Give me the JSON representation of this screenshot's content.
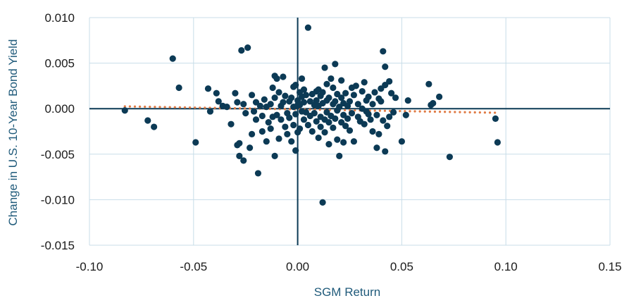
{
  "chart_data": {
    "type": "scatter",
    "xlabel": "SGM Return",
    "ylabel": "Change in U.S. 10-Year Bond Yield",
    "xlim": [
      -0.1,
      0.15
    ],
    "ylim": [
      -0.015,
      0.01
    ],
    "x_ticks": [
      -0.1,
      -0.05,
      0.0,
      0.05,
      0.1,
      0.15
    ],
    "x_tick_labels": [
      "-0.10",
      "-0.05",
      "0.00",
      "0.05",
      "0.10",
      "0.15"
    ],
    "y_ticks": [
      0.01,
      0.005,
      0.0,
      -0.005,
      -0.01,
      -0.015
    ],
    "y_tick_labels": [
      "0.010",
      "0.005",
      "0.000",
      "-0.005",
      "-0.010",
      "-0.015"
    ],
    "grid": true,
    "colors": {
      "points": "#0c3a55",
      "trendline": "#e07b45",
      "grid": "#c8dde8",
      "zero_axes": "#0c3a55",
      "axis_title": "#1f5a7a"
    },
    "series": [
      {
        "points": [
          [
            -0.083,
            -0.0002
          ],
          [
            -0.072,
            -0.0013
          ],
          [
            -0.069,
            -0.002
          ],
          [
            -0.06,
            0.0055
          ],
          [
            -0.057,
            0.0023
          ],
          [
            -0.049,
            -0.0037
          ],
          [
            -0.043,
            0.0022
          ],
          [
            -0.042,
            -0.0003
          ],
          [
            -0.039,
            0.0017
          ],
          [
            -0.038,
            0.0008
          ],
          [
            -0.036,
            0.0003
          ],
          [
            -0.034,
            0.0002
          ],
          [
            -0.032,
            -0.0017
          ],
          [
            -0.03,
            0.0017
          ],
          [
            -0.029,
            0.0007
          ],
          [
            -0.029,
            -0.004
          ],
          [
            -0.028,
            -0.0038
          ],
          [
            -0.028,
            -0.0052
          ],
          [
            -0.027,
            0.0064
          ],
          [
            -0.026,
            -0.0057
          ],
          [
            -0.026,
            0.0005
          ],
          [
            -0.025,
            -0.0005
          ],
          [
            -0.024,
            0.0067
          ],
          [
            -0.023,
            -0.0043
          ],
          [
            -0.022,
            0.0015
          ],
          [
            -0.022,
            -0.0028
          ],
          [
            -0.021,
            -0.0003
          ],
          [
            -0.02,
            0.0007
          ],
          [
            -0.02,
            -0.0012
          ],
          [
            -0.019,
            -0.0071
          ],
          [
            -0.018,
            0.0003
          ],
          [
            -0.017,
            -0.0008
          ],
          [
            -0.017,
            -0.0025
          ],
          [
            -0.016,
            0.001
          ],
          [
            -0.015,
            0.0002
          ],
          [
            -0.015,
            -0.0036
          ],
          [
            -0.014,
            -0.0015
          ],
          [
            -0.013,
            0.0005
          ],
          [
            -0.013,
            -0.0022
          ],
          [
            -0.012,
            0.0023
          ],
          [
            -0.012,
            -0.0009
          ],
          [
            -0.011,
            0.0012
          ],
          [
            -0.011,
            0.0036
          ],
          [
            -0.011,
            -0.0052
          ],
          [
            -0.01,
            0.0033
          ],
          [
            -0.01,
            -0.0007
          ],
          [
            -0.009,
            0.0018
          ],
          [
            -0.009,
            -0.0033
          ],
          [
            -0.008,
            0.0003
          ],
          [
            -0.008,
            -0.0012
          ],
          [
            -0.007,
            0.0035
          ],
          [
            -0.007,
            0.0007
          ],
          [
            -0.006,
            -0.002
          ],
          [
            -0.006,
            0.0014
          ],
          [
            -0.005,
            -0.0005
          ],
          [
            -0.005,
            -0.0028
          ],
          [
            -0.004,
            0.0008
          ],
          [
            -0.004,
            -0.001
          ],
          [
            -0.003,
            0.0012
          ],
          [
            -0.003,
            -0.0036
          ],
          [
            -0.002,
            0.0002
          ],
          [
            -0.002,
            -0.0018
          ],
          [
            -0.002,
            0.0024
          ],
          [
            -0.001,
            0.0026
          ],
          [
            -0.001,
            -0.0006
          ],
          [
            -0.001,
            -0.0046
          ],
          [
            0.0,
            0.0009
          ],
          [
            0.0,
            -0.0026
          ],
          [
            0.0,
            0.0004
          ],
          [
            0.001,
            0.0018
          ],
          [
            0.001,
            0.0004
          ],
          [
            0.001,
            -0.0022
          ],
          [
            0.002,
            0.0033
          ],
          [
            0.002,
            0.0013
          ],
          [
            0.002,
            -0.0003
          ],
          [
            0.003,
            0.0007
          ],
          [
            0.003,
            -0.0012
          ],
          [
            0.003,
            0.0021
          ],
          [
            0.004,
            -0.0004
          ],
          [
            0.004,
            0.0015
          ],
          [
            0.005,
            0.0089
          ],
          [
            0.005,
            -0.0018
          ],
          [
            0.006,
            0.0008
          ],
          [
            0.006,
            -0.0008
          ],
          [
            0.007,
            0.0016
          ],
          [
            0.007,
            -0.0025
          ],
          [
            0.008,
            0.0004
          ],
          [
            0.008,
            -0.0005
          ],
          [
            0.009,
            0.0019
          ],
          [
            0.009,
            0.0009
          ],
          [
            0.009,
            -0.0014
          ],
          [
            0.01,
            0.0021
          ],
          [
            0.01,
            -0.0032
          ],
          [
            0.01,
            0.0003
          ],
          [
            0.011,
            -0.0009
          ],
          [
            0.011,
            0.0014
          ],
          [
            0.011,
            -0.002
          ],
          [
            0.012,
            0.0006
          ],
          [
            0.012,
            -0.0103
          ],
          [
            0.012,
            0.0018
          ],
          [
            0.013,
            -0.0012
          ],
          [
            0.013,
            0.0045
          ],
          [
            0.013,
            -0.0026
          ],
          [
            0.014,
            0.0009
          ],
          [
            0.014,
            -0.0004
          ],
          [
            0.014,
            0.0027
          ],
          [
            0.015,
            -0.0015
          ],
          [
            0.015,
            0.0012
          ],
          [
            0.015,
            -0.0039
          ],
          [
            0.016,
            0.0033
          ],
          [
            0.016,
            -0.0008
          ],
          [
            0.017,
            0.0005
          ],
          [
            0.017,
            0.0023
          ],
          [
            0.017,
            -0.0021
          ],
          [
            0.018,
            0.0049
          ],
          [
            0.018,
            -0.0011
          ],
          [
            0.018,
            0.0008
          ],
          [
            0.019,
            -0.0002
          ],
          [
            0.019,
            0.0016
          ],
          [
            0.019,
            -0.0034
          ],
          [
            0.02,
            -0.0052
          ],
          [
            0.02,
            0.0002
          ],
          [
            0.021,
            0.0012
          ],
          [
            0.021,
            -0.0015
          ],
          [
            0.021,
            0.0031
          ],
          [
            0.022,
            -0.0007
          ],
          [
            0.022,
            -0.0037
          ],
          [
            0.022,
            0.0006
          ],
          [
            0.023,
            0.0017
          ],
          [
            0.023,
            -0.0019
          ],
          [
            0.024,
            0.0003
          ],
          [
            0.024,
            -0.0011
          ],
          [
            0.025,
            0.0008
          ],
          [
            0.025,
            -0.0024
          ],
          [
            0.026,
            0.0023
          ],
          [
            0.026,
            -0.0005
          ],
          [
            0.027,
            0.0015
          ],
          [
            0.027,
            -0.0036
          ],
          [
            0.028,
            0.0025
          ],
          [
            0.029,
            -0.0009
          ],
          [
            0.029,
            0.0005
          ],
          [
            0.03,
            -0.0014
          ],
          [
            0.031,
            0.0019
          ],
          [
            0.031,
            0.0
          ],
          [
            0.032,
            0.0029
          ],
          [
            0.032,
            -0.0017
          ],
          [
            0.033,
            0.0009
          ],
          [
            0.033,
            -0.0003
          ],
          [
            0.034,
            0.0013
          ],
          [
            0.034,
            -0.0006
          ],
          [
            0.035,
            -0.0012
          ],
          [
            0.036,
            0.0005
          ],
          [
            0.036,
            -0.0025
          ],
          [
            0.037,
            0.0018
          ],
          [
            0.038,
            -0.0007
          ],
          [
            0.038,
            -0.0043
          ],
          [
            0.039,
            0.0011
          ],
          [
            0.039,
            -0.0028
          ],
          [
            0.04,
            0.0008
          ],
          [
            0.04,
            0.0022
          ],
          [
            0.041,
            -0.0013
          ],
          [
            0.041,
            0.0063
          ],
          [
            0.042,
            0.0046
          ],
          [
            0.042,
            -0.0047
          ],
          [
            0.042,
            0.0026
          ],
          [
            0.043,
            -0.0019
          ],
          [
            0.044,
            0.003
          ],
          [
            0.044,
            -0.0009
          ],
          [
            0.045,
            0.0017
          ],
          [
            0.046,
            -0.0004
          ],
          [
            0.047,
            0.0012
          ],
          [
            0.05,
            -0.0036
          ],
          [
            0.052,
            -0.0007
          ],
          [
            0.053,
            0.0009
          ],
          [
            0.063,
            0.0027
          ],
          [
            0.064,
            0.0004
          ],
          [
            0.065,
            0.0006
          ],
          [
            0.068,
            0.0013
          ],
          [
            0.073,
            -0.0053
          ],
          [
            0.095,
            -0.0011
          ],
          [
            0.096,
            -0.0037
          ]
        ]
      }
    ],
    "trendline": {
      "style": "dotted",
      "from": [
        -0.083,
        0.00025
      ],
      "to": [
        0.096,
        -0.00045
      ]
    }
  }
}
